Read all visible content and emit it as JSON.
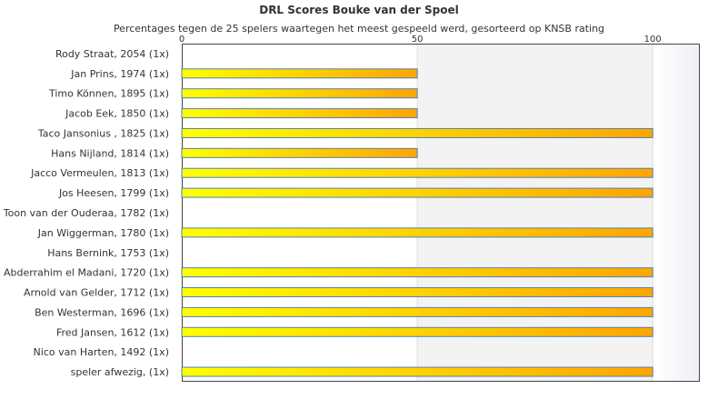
{
  "chart_data": {
    "type": "bar",
    "orientation": "horizontal",
    "title": "DRL Scores Bouke van der Spoel",
    "subtitle": "Percentages tegen de 25 spelers waartegen het meest gespeeld werd, gesorteerd op KNSB rating",
    "xlim": [
      0,
      110
    ],
    "xticks": [
      "0",
      "50",
      "100"
    ],
    "categories": [
      "Rody Straat, 2054 (1x)",
      "Jan Prins, 1974 (1x)",
      "Timo Können, 1895 (1x)",
      "Jacob Eek, 1850 (1x)",
      "Taco Jansonius , 1825 (1x)",
      "Hans Nijland, 1814 (1x)",
      "Jacco Vermeulen, 1813 (1x)",
      "Jos Heesen, 1799 (1x)",
      "Toon van der Ouderaa, 1782 (1x)",
      "Jan Wiggerman, 1780 (1x)",
      "Hans Bernink, 1753 (1x)",
      "Abderrahim el Madani, 1720 (1x)",
      "Arnold van Gelder, 1712 (1x)",
      "Ben Westerman, 1696 (1x)",
      "Fred Jansen, 1612 (1x)",
      "Nico van Harten, 1492 (1x)",
      "speler afwezig,  (1x)"
    ],
    "values": [
      0,
      50,
      50,
      50,
      100,
      50,
      100,
      100,
      0,
      100,
      0,
      100,
      100,
      100,
      100,
      0,
      100
    ],
    "colors": {
      "bar_start": "#ffff00",
      "bar_end": "#ffa500",
      "bar_border": "#4f81bd",
      "band": "#f3f3f3"
    }
  }
}
